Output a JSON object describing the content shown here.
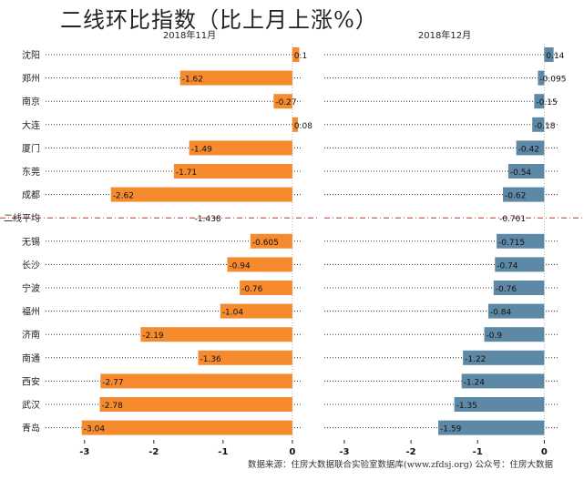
{
  "title": "二线环比指数（比上月上涨%）",
  "source": "数据来源：住房大数据联合实验室数据库(www.zfdsj.org) 公众号：住房大数据",
  "colors": {
    "left_bar": "#f58a2e",
    "right_bar": "#5e89a6",
    "avg_line": "#c0392b",
    "dots": "#333333"
  },
  "chart_data": {
    "type": "bar",
    "orientation": "horizontal",
    "categories": [
      "沈阳",
      "郑州",
      "南京",
      "大连",
      "厦门",
      "东莞",
      "成都",
      "二线平均",
      "无锡",
      "长沙",
      "宁波",
      "福州",
      "济南",
      "南通",
      "西安",
      "武汉",
      "青岛"
    ],
    "average_category": "二线平均",
    "panels": [
      {
        "subtitle": "2018年11月",
        "xlim": [
          -3.3,
          0.12
        ],
        "xticks": [
          -3,
          -2,
          -1,
          0
        ],
        "xtick_labels": [
          "-3",
          "-2",
          "-1",
          "0"
        ],
        "values": [
          0.1,
          -1.62,
          -0.27,
          0.08,
          -1.49,
          -1.71,
          -2.62,
          -1.438,
          -0.605,
          -0.94,
          -0.76,
          -1.04,
          -2.19,
          -1.36,
          -2.77,
          -2.78,
          -3.04
        ],
        "labels": [
          "0.1",
          "-1.62",
          "-0.27",
          "0.08",
          "-1.49",
          "-1.71",
          "-2.62",
          "-1.438",
          "-0.605",
          "-0.94",
          "-0.76",
          "-1.04",
          "-2.19",
          "-1.36",
          "-2.77",
          "-2.78",
          "-3.04"
        ]
      },
      {
        "subtitle": "2018年12月",
        "xlim": [
          -3.3,
          0.2
        ],
        "xticks": [
          -3,
          -2,
          -1,
          0
        ],
        "xtick_labels": [
          "-3",
          "-2",
          "-1",
          "0"
        ],
        "values": [
          0.14,
          -0.095,
          -0.15,
          -0.18,
          -0.42,
          -0.54,
          -0.62,
          -0.701,
          -0.715,
          -0.74,
          -0.76,
          -0.84,
          -0.9,
          -1.22,
          -1.24,
          -1.35,
          -1.59
        ],
        "labels": [
          "0.14",
          "-0.095",
          "-0.15",
          "-0.18",
          "-0.42",
          "-0.54",
          "-0.62",
          "-0.701",
          "-0.715",
          "-0.74",
          "-0.76",
          "-0.84",
          "-0.9",
          "-1.22",
          "-1.24",
          "-1.35",
          "-1.59"
        ]
      }
    ]
  }
}
